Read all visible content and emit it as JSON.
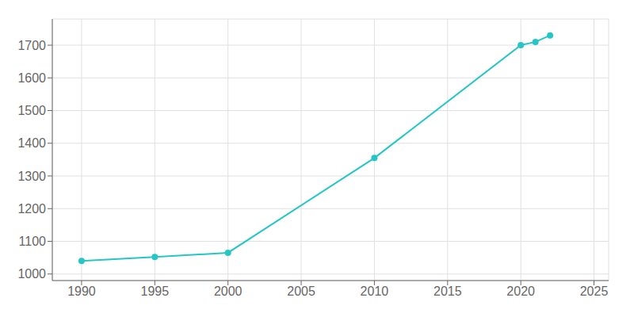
{
  "chart_data": {
    "type": "line",
    "x": [
      1990,
      1995,
      2000,
      2010,
      2020,
      2021,
      2022
    ],
    "values": [
      1040,
      1052,
      1065,
      1355,
      1700,
      1710,
      1730
    ],
    "color": "#26c6c6",
    "marker": "circle",
    "xlim": [
      1988,
      2026
    ],
    "ylim": [
      980,
      1780
    ],
    "xticks": [
      1990,
      1995,
      2000,
      2005,
      2010,
      2015,
      2020,
      2025
    ],
    "yticks": [
      1000,
      1100,
      1200,
      1300,
      1400,
      1500,
      1600,
      1700
    ],
    "grid": true
  }
}
